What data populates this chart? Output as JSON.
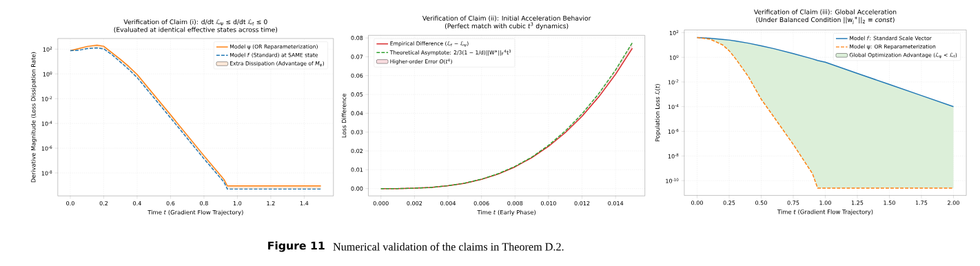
{
  "chart_data": [
    {
      "type": "line",
      "title": "Verification of Claim (i): d/dt ℒ$_{ψ}$ ≤ d/dt ℒ$_{f}$ ≤ 0",
      "subtitle": "(Evaluated at identical effective states across time)",
      "xlabel": "Time *t* (Gradient Flow Trajectory)",
      "ylabel": "Derivative Magnitude (Loss Dissipation Rate)",
      "log": "y",
      "grid": true,
      "legend": "top right",
      "xlim": [
        -0.075,
        1.575
      ],
      "xticks": [
        {
          "value": 0,
          "label": "0.0"
        },
        0.2,
        0.4,
        0.6,
        0.8,
        {
          "value": 1,
          "label": "1.0"
        },
        1.2,
        1.4
      ],
      "ylim": [
        1.4e-10,
        720
      ],
      "yticks": [
        {
          "value": 100,
          "label": "10$^{2}$"
        },
        {
          "value": 1,
          "label": "10$^{0}$"
        },
        {
          "value": 0.01,
          "label": "10$^{-2}$"
        },
        {
          "value": 0.0001,
          "label": "10$^{-4}$"
        },
        {
          "value": 1e-06,
          "label": "10$^{-6}$"
        },
        {
          "value": 1e-08,
          "label": "10$^{-8}$"
        }
      ],
      "series": [
        {
          "name": "Model ψ (OR Reparameterization)",
          "color": "#ff7f0e",
          "line_style": "solid",
          "x": [
            0,
            0.05,
            0.1,
            0.16,
            0.2,
            0.25,
            0.3,
            0.35,
            0.4,
            0.6,
            0.8,
            0.92,
            0.94,
            1.5
          ],
          "values": [
            75,
            110,
            165,
            210,
            170,
            50,
            15,
            4,
            0.9,
            0.0005,
            2.5e-07,
            3e-09,
            9e-10,
            9e-10
          ]
        },
        {
          "name": "Model *f* (Standard) at SAME state",
          "color": "#1f77b4",
          "line_style": "dashed",
          "x": [
            0,
            0.05,
            0.1,
            0.16,
            0.2,
            0.25,
            0.3,
            0.35,
            0.4,
            0.6,
            0.8,
            0.92,
            0.94,
            1.5
          ],
          "values": [
            75,
            80,
            110,
            125,
            105,
            35,
            9,
            2.3,
            0.5,
            0.00028,
            1.4e-07,
            1.8e-09,
            5e-10,
            5e-10
          ]
        },
        {
          "name": "Extra Dissipation (Advantage of *M*$_{ψ}$)",
          "type": "area",
          "color": "#fde9d9",
          "x": [
            0,
            0.05,
            0.1,
            0.16,
            0.2,
            0.25,
            0.3,
            0.35,
            0.4,
            0.6,
            0.8,
            0.92,
            0.94,
            1.5
          ],
          "values": [
            null,
            null,
            null,
            null,
            null,
            null,
            null,
            null,
            null,
            null,
            null,
            null,
            null,
            null
          ],
          "lower": [
            75,
            80,
            110,
            125,
            105,
            35,
            9,
            2.3,
            0.5,
            0.00028,
            1.4e-07,
            1.8e-09,
            5e-10,
            5e-10
          ],
          "upper": [
            75,
            110,
            165,
            210,
            170,
            50,
            15,
            4,
            0.9,
            0.0005,
            2.5e-07,
            3e-09,
            9e-10,
            9e-10
          ]
        }
      ]
    },
    {
      "type": "line",
      "title": "Verification of Claim (ii): Initial Acceleration Behavior",
      "subtitle": "(Perfect match with cubic *t*$^{3}$ dynamics)",
      "xlabel": "Time *t* (Early Phase)",
      "ylabel": "Loss Difference",
      "grid": true,
      "legend": "top left",
      "xlim": [
        -0.00075,
        0.01575
      ],
      "xticks": [
        {
          "value": 0,
          "label": "0.000"
        },
        0.002,
        0.004,
        0.006,
        0.008,
        {
          "value": 0.01,
          "label": "0.010"
        },
        0.012,
        0.014
      ],
      "ylim": [
        -0.0039,
        0.0814
      ],
      "yticks": [
        {
          "value": 0,
          "label": "0.00"
        },
        0.01,
        0.02,
        0.03,
        0.04,
        0.05,
        0.06,
        0.07,
        0.08
      ],
      "annotations": [
        "Figure 11",
        "Numerical validation of the claims in Theorem D.2."
      ],
      "series": [
        {
          "name": "Empirical Difference (ℒ$_{f}$ − ℒ$_{ψ}$)",
          "color": "#d62728",
          "line_style": "solid",
          "x": [
            0,
            0.001,
            0.002,
            0.003,
            0.004,
            0.005,
            0.006,
            0.007,
            0.008,
            0.009,
            0.01,
            0.011,
            0.012,
            0.013,
            0.014,
            0.015
          ],
          "values": [
            0,
            0,
            0.0002,
            0.0006,
            0.0015,
            0.0028,
            0.0049,
            0.0077,
            0.0115,
            0.0164,
            0.0224,
            0.0297,
            0.0384,
            0.0487,
            0.0607,
            0.0745
          ]
        },
        {
          "name": "Theoretical Asymptote: 2/3(1 − 1/d)||W$^{∗}$||$_{F}$$^{4}$t$^{3}$",
          "color": "#2ca02c",
          "line_style": "dashed",
          "x": [
            0,
            0.001,
            0.002,
            0.003,
            0.004,
            0.005,
            0.006,
            0.007,
            0.008,
            0.009,
            0.01,
            0.011,
            0.012,
            0.013,
            0.014,
            0.015
          ],
          "values": [
            0,
            0,
            0.0002,
            0.0006,
            0.0015,
            0.0029,
            0.005,
            0.0079,
            0.0118,
            0.0167,
            0.023,
            0.0306,
            0.0397,
            0.0505,
            0.063,
            0.0775
          ]
        },
        {
          "name": "Higher-order Error *O*(*t*$^{4}$)",
          "type": "area",
          "color": "#f9dde0",
          "x": [
            0,
            0.001,
            0.002,
            0.003,
            0.004,
            0.005,
            0.006,
            0.007,
            0.008,
            0.009,
            0.01,
            0.011,
            0.012,
            0.013,
            0.014,
            0.015
          ],
          "values": [
            null,
            null,
            null,
            null,
            null,
            null,
            null,
            null,
            null,
            null,
            null,
            null,
            null,
            null,
            null,
            null
          ],
          "lower": [
            0,
            0,
            0.0002,
            0.0006,
            0.0015,
            0.0028,
            0.0049,
            0.0077,
            0.0115,
            0.0164,
            0.0224,
            0.0297,
            0.0384,
            0.0487,
            0.0607,
            0.0745
          ],
          "upper": [
            0,
            0,
            0.0002,
            0.0006,
            0.0015,
            0.0029,
            0.005,
            0.0079,
            0.0118,
            0.0167,
            0.023,
            0.0306,
            0.0397,
            0.0505,
            0.063,
            0.0775
          ]
        }
      ]
    },
    {
      "type": "line",
      "title": "Verification of Claim (iii): Global Acceleration",
      "subtitle": "(Under Balanced Condition ||w$_{j}$$^{∗}$||$_{2}$ ≡ *const*)",
      "xlabel": "Time *t* (Gradient Flow Trajectory)",
      "ylabel": "Population Loss ℒ(*t*)",
      "log": "y",
      "grid": true,
      "legend": "top right",
      "xlim": [
        -0.1,
        2.1
      ],
      "xticks": [
        {
          "value": 0,
          "label": "0.00"
        },
        0.25,
        {
          "value": 0.5,
          "label": "0.50"
        },
        0.75,
        {
          "value": 1,
          "label": "1.00"
        },
        1.25,
        {
          "value": 1.5,
          "label": "1.50"
        },
        1.75,
        {
          "value": 2,
          "label": "2.00"
        }
      ],
      "ylim": [
        6.3e-12,
        166
      ],
      "yticks": [
        {
          "value": 100,
          "label": "10$^{2}$"
        },
        {
          "value": 1,
          "label": "10$^{0}$"
        },
        {
          "value": 0.01,
          "label": "10$^{-2}$"
        },
        {
          "value": 0.0001,
          "label": "10$^{-4}$"
        },
        {
          "value": 1e-06,
          "label": "10$^{-6}$"
        },
        {
          "value": 1e-08,
          "label": "10$^{-8}$"
        },
        {
          "value": 1e-10,
          "label": "10$^{-10}$"
        }
      ],
      "series": [
        {
          "name": "Model *f*: Standard Scale Vector",
          "color": "#1f77b4",
          "line_style": "solid",
          "x": [
            0,
            0.1,
            0.2,
            0.25,
            0.3,
            0.4,
            0.5,
            0.6,
            0.75,
            0.9,
            0.94,
            1,
            1.25,
            1.5,
            1.75,
            2
          ],
          "values": [
            40,
            35,
            28,
            25,
            21,
            14,
            8.6,
            5,
            2,
            0.75,
            0.55,
            0.4,
            0.05,
            0.0063,
            0.0008,
            0.0001
          ]
        },
        {
          "name": "Model ψ: OR Reparameterization",
          "color": "#ff7f0e",
          "line_style": "dashed",
          "x": [
            0,
            0.1,
            0.2,
            0.25,
            0.3,
            0.4,
            0.5,
            0.6,
            0.75,
            0.9,
            0.94,
            1,
            1.25,
            1.5,
            1.75,
            2
          ],
          "values": [
            40,
            30,
            10,
            3.4,
            0.78,
            0.027,
            0.0004,
            1.4e-05,
            8.7e-08,
            3.7e-10,
            2.5e-11,
            2.5e-11,
            2.5e-11,
            2.5e-11,
            2.5e-11,
            2.5e-11
          ]
        },
        {
          "name": "Global Optimization Advantage (ℒ$_{ψ}$ < ℒ$_{f}$)",
          "type": "area",
          "color": "#dcefd9",
          "x": [
            0,
            0.1,
            0.2,
            0.25,
            0.3,
            0.4,
            0.5,
            0.6,
            0.75,
            0.9,
            0.94,
            1,
            1.25,
            1.5,
            1.75,
            2
          ],
          "values": [
            null,
            null,
            null,
            null,
            null,
            null,
            null,
            null,
            null,
            null,
            null,
            null,
            null,
            null,
            null,
            null
          ],
          "lower": [
            40,
            30,
            10,
            3.4,
            0.78,
            0.027,
            0.0004,
            1.4e-05,
            8.7e-08,
            3.7e-10,
            2.5e-11,
            2.5e-11,
            2.5e-11,
            2.5e-11,
            2.5e-11,
            2.5e-11
          ],
          "upper": [
            40,
            35,
            28,
            25,
            21,
            14,
            8.6,
            5,
            2,
            0.75,
            0.55,
            0.4,
            0.05,
            0.0063,
            0.0008,
            0.0001
          ]
        }
      ]
    }
  ]
}
